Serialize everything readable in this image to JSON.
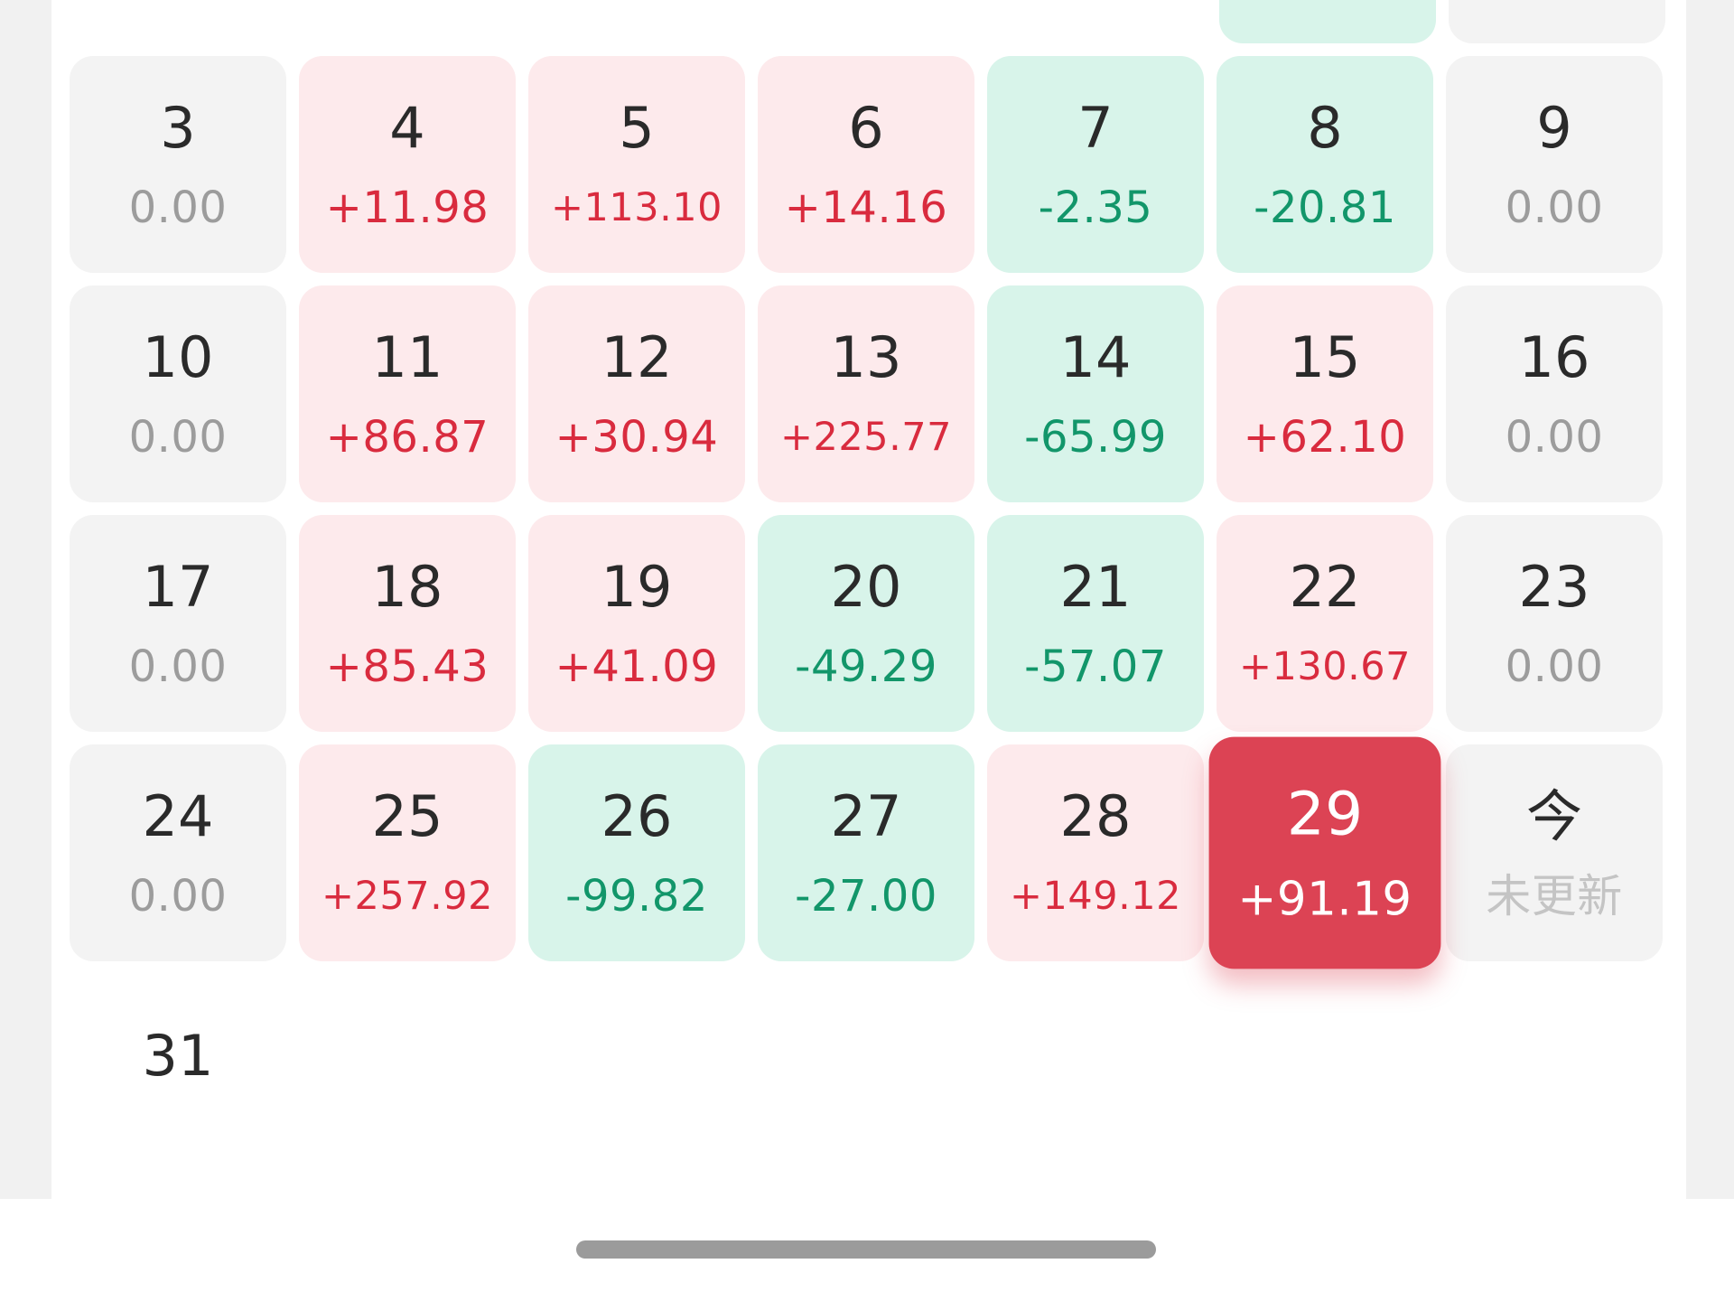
{
  "colors": {
    "gain_text": "#d92b3e",
    "gain_bg": "#fdeaec",
    "loss_text": "#12966a",
    "loss_bg": "#d8f4ea",
    "zero_text": "#9c9c9c",
    "zero_bg": "#f3f3f3",
    "selected_bg": "#dc4354"
  },
  "calendar": {
    "days": [
      {
        "day": "3",
        "value": "0.00",
        "state": "zero"
      },
      {
        "day": "4",
        "value": "+11.98",
        "state": "gain"
      },
      {
        "day": "5",
        "value": "+113.10",
        "state": "gain"
      },
      {
        "day": "6",
        "value": "+14.16",
        "state": "gain"
      },
      {
        "day": "7",
        "value": "-2.35",
        "state": "loss"
      },
      {
        "day": "8",
        "value": "-20.81",
        "state": "loss"
      },
      {
        "day": "9",
        "value": "0.00",
        "state": "zero"
      },
      {
        "day": "10",
        "value": "0.00",
        "state": "zero"
      },
      {
        "day": "11",
        "value": "+86.87",
        "state": "gain"
      },
      {
        "day": "12",
        "value": "+30.94",
        "state": "gain"
      },
      {
        "day": "13",
        "value": "+225.77",
        "state": "gain"
      },
      {
        "day": "14",
        "value": "-65.99",
        "state": "loss"
      },
      {
        "day": "15",
        "value": "+62.10",
        "state": "gain"
      },
      {
        "day": "16",
        "value": "0.00",
        "state": "zero"
      },
      {
        "day": "17",
        "value": "0.00",
        "state": "zero"
      },
      {
        "day": "18",
        "value": "+85.43",
        "state": "gain"
      },
      {
        "day": "19",
        "value": "+41.09",
        "state": "gain"
      },
      {
        "day": "20",
        "value": "-49.29",
        "state": "loss"
      },
      {
        "day": "21",
        "value": "-57.07",
        "state": "loss"
      },
      {
        "day": "22",
        "value": "+130.67",
        "state": "gain"
      },
      {
        "day": "23",
        "value": "0.00",
        "state": "zero"
      },
      {
        "day": "24",
        "value": "0.00",
        "state": "zero"
      },
      {
        "day": "25",
        "value": "+257.92",
        "state": "gain"
      },
      {
        "day": "26",
        "value": "-99.82",
        "state": "loss"
      },
      {
        "day": "27",
        "value": "-27.00",
        "state": "loss"
      },
      {
        "day": "28",
        "value": "+149.12",
        "state": "gain"
      },
      {
        "day": "29",
        "value": "+91.19",
        "state": "selected"
      },
      {
        "day": "今",
        "value": "未更新",
        "state": "today"
      },
      {
        "day": "31",
        "value": "",
        "state": "empty"
      }
    ]
  }
}
